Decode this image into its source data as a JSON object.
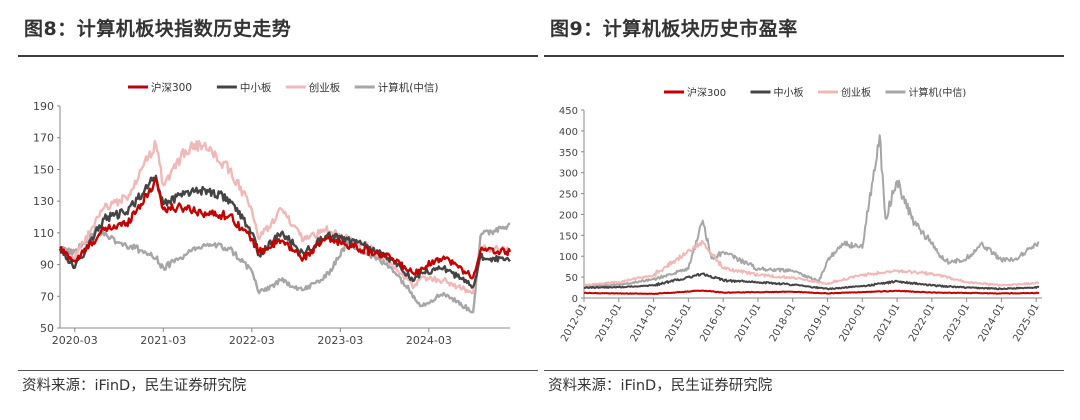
{
  "panels": [
    {
      "title": "图8：计算机板块指数历史走势",
      "source": "资料来源：iFinD，民生证券研究院"
    },
    {
      "title": "图9：计算机板块历史市盈率",
      "source": "资料来源：iFinD，民生证券研究院"
    }
  ],
  "chart_data": [
    {
      "type": "line",
      "title": "",
      "xlabel": "",
      "ylabel": "",
      "ylim": [
        50,
        190
      ],
      "yticks": [
        50,
        70,
        90,
        110,
        130,
        150,
        170,
        190
      ],
      "xlim": [
        "2020-01",
        "2025-02"
      ],
      "xticks": [
        "2020-03",
        "2021-03",
        "2022-03",
        "2023-03",
        "2024-03"
      ],
      "grid": false,
      "legend": "top",
      "series": [
        {
          "name": "沪深300",
          "color": "#c00000",
          "points": [
            [
              "2020-01",
              100
            ],
            [
              "2020-03",
              92
            ],
            [
              "2020-07",
              112
            ],
            [
              "2020-10",
              116
            ],
            [
              "2021-01",
              135
            ],
            [
              "2021-02",
              144
            ],
            [
              "2021-03",
              125
            ],
            [
              "2021-06",
              126
            ],
            [
              "2021-09",
              122
            ],
            [
              "2021-12",
              121
            ],
            [
              "2022-03",
              106
            ],
            [
              "2022-04",
              98
            ],
            [
              "2022-07",
              105
            ],
            [
              "2022-10",
              94
            ],
            [
              "2023-01",
              106
            ],
            [
              "2023-03",
              104
            ],
            [
              "2023-07",
              98
            ],
            [
              "2023-10",
              94
            ],
            [
              "2024-01",
              84
            ],
            [
              "2024-02",
              88
            ],
            [
              "2024-05",
              95
            ],
            [
              "2024-09",
              82
            ],
            [
              "2024-10",
              99
            ],
            [
              "2025-02",
              98
            ]
          ]
        },
        {
          "name": "中小板",
          "color": "#444444",
          "points": [
            [
              "2020-01",
              100
            ],
            [
              "2020-03",
              88
            ],
            [
              "2020-07",
              119
            ],
            [
              "2020-10",
              123
            ],
            [
              "2021-01",
              140
            ],
            [
              "2021-02",
              146
            ],
            [
              "2021-03",
              128
            ],
            [
              "2021-06",
              136
            ],
            [
              "2021-09",
              137
            ],
            [
              "2021-12",
              131
            ],
            [
              "2022-03",
              110
            ],
            [
              "2022-04",
              96
            ],
            [
              "2022-07",
              110
            ],
            [
              "2022-10",
              97
            ],
            [
              "2023-01",
              108
            ],
            [
              "2023-03",
              107
            ],
            [
              "2023-07",
              101
            ],
            [
              "2023-10",
              93
            ],
            [
              "2024-01",
              80
            ],
            [
              "2024-02",
              85
            ],
            [
              "2024-05",
              88
            ],
            [
              "2024-09",
              76
            ],
            [
              "2024-10",
              95
            ],
            [
              "2025-02",
              92
            ]
          ]
        },
        {
          "name": "创业板",
          "color": "#f0b8b8",
          "points": [
            [
              "2020-01",
              100
            ],
            [
              "2020-03",
              94
            ],
            [
              "2020-07",
              126
            ],
            [
              "2020-10",
              132
            ],
            [
              "2021-01",
              158
            ],
            [
              "2021-02",
              166
            ],
            [
              "2021-03",
              140
            ],
            [
              "2021-06",
              162
            ],
            [
              "2021-08",
              166
            ],
            [
              "2021-12",
              150
            ],
            [
              "2022-03",
              125
            ],
            [
              "2022-04",
              106
            ],
            [
              "2022-07",
              125
            ],
            [
              "2022-10",
              105
            ],
            [
              "2023-01",
              112
            ],
            [
              "2023-03",
              108
            ],
            [
              "2023-07",
              101
            ],
            [
              "2023-10",
              90
            ],
            [
              "2024-01",
              76
            ],
            [
              "2024-02",
              82
            ],
            [
              "2024-05",
              80
            ],
            [
              "2024-09",
              72
            ],
            [
              "2024-10",
              100
            ],
            [
              "2025-02",
              100
            ]
          ]
        },
        {
          "name": "计算机(中信)",
          "color": "#a6a6a6",
          "points": [
            [
              "2020-01",
              100
            ],
            [
              "2020-03",
              98
            ],
            [
              "2020-06",
              112
            ],
            [
              "2020-09",
              104
            ],
            [
              "2020-12",
              99
            ],
            [
              "2021-02",
              94
            ],
            [
              "2021-03",
              88
            ],
            [
              "2021-06",
              96
            ],
            [
              "2021-09",
              103
            ],
            [
              "2021-12",
              100
            ],
            [
              "2022-03",
              86
            ],
            [
              "2022-04",
              72
            ],
            [
              "2022-07",
              80
            ],
            [
              "2022-10",
              74
            ],
            [
              "2023-01",
              82
            ],
            [
              "2023-04",
              104
            ],
            [
              "2023-07",
              96
            ],
            [
              "2023-10",
              88
            ],
            [
              "2024-01",
              70
            ],
            [
              "2024-02",
              64
            ],
            [
              "2024-05",
              72
            ],
            [
              "2024-09",
              60
            ],
            [
              "2024-10",
              108
            ],
            [
              "2025-02",
              116
            ]
          ]
        }
      ]
    },
    {
      "type": "line",
      "title": "",
      "xlabel": "",
      "ylabel": "",
      "ylim": [
        0,
        450
      ],
      "yticks": [
        0,
        50,
        100,
        150,
        200,
        250,
        300,
        350,
        400,
        450
      ],
      "xlim": [
        "2012-01",
        "2025-03"
      ],
      "xticks": [
        "2012-01",
        "2013-01",
        "2014-01",
        "2015-01",
        "2016-01",
        "2017-01",
        "2018-01",
        "2019-01",
        "2020-01",
        "2021-01",
        "2022-01",
        "2023-01",
        "2024-01",
        "2025-01"
      ],
      "grid": false,
      "legend": "top",
      "series": [
        {
          "name": "沪深300",
          "color": "#c00000",
          "points": [
            [
              "2012-01",
              12
            ],
            [
              "2014-01",
              10
            ],
            [
              "2015-06",
              18
            ],
            [
              "2016-01",
              13
            ],
            [
              "2018-01",
              15
            ],
            [
              "2019-01",
              11
            ],
            [
              "2021-01",
              17
            ],
            [
              "2022-01",
              13
            ],
            [
              "2023-01",
              12
            ],
            [
              "2024-01",
              11
            ],
            [
              "2025-02",
              12
            ]
          ]
        },
        {
          "name": "中小板",
          "color": "#444444",
          "points": [
            [
              "2012-01",
              25
            ],
            [
              "2013-01",
              26
            ],
            [
              "2014-01",
              30
            ],
            [
              "2015-06",
              58
            ],
            [
              "2016-01",
              42
            ],
            [
              "2017-01",
              38
            ],
            [
              "2018-01",
              32
            ],
            [
              "2019-01",
              22
            ],
            [
              "2020-01",
              28
            ],
            [
              "2021-01",
              40
            ],
            [
              "2022-01",
              30
            ],
            [
              "2023-01",
              25
            ],
            [
              "2024-01",
              22
            ],
            [
              "2025-02",
              26
            ]
          ]
        },
        {
          "name": "创业板",
          "color": "#f0b8b8",
          "points": [
            [
              "2012-01",
              30
            ],
            [
              "2013-01",
              38
            ],
            [
              "2014-01",
              55
            ],
            [
              "2015-06",
              135
            ],
            [
              "2016-01",
              72
            ],
            [
              "2017-01",
              55
            ],
            [
              "2018-01",
              48
            ],
            [
              "2019-01",
              35
            ],
            [
              "2020-01",
              55
            ],
            [
              "2021-01",
              65
            ],
            [
              "2022-01",
              58
            ],
            [
              "2023-01",
              38
            ],
            [
              "2024-01",
              30
            ],
            [
              "2025-02",
              36
            ]
          ]
        },
        {
          "name": "计算机(中信)",
          "color": "#a6a6a6",
          "points": [
            [
              "2012-01",
              28
            ],
            [
              "2013-01",
              32
            ],
            [
              "2014-01",
              45
            ],
            [
              "2015-01",
              70
            ],
            [
              "2015-06",
              185
            ],
            [
              "2015-09",
              95
            ],
            [
              "2016-01",
              110
            ],
            [
              "2017-01",
              70
            ],
            [
              "2018-01",
              65
            ],
            [
              "2018-10",
              40
            ],
            [
              "2019-01",
              90
            ],
            [
              "2019-06",
              130
            ],
            [
              "2020-01",
              120
            ],
            [
              "2020-07",
              390
            ],
            [
              "2020-09",
              190
            ],
            [
              "2021-01",
              280
            ],
            [
              "2021-06",
              190
            ],
            [
              "2022-01",
              130
            ],
            [
              "2022-04",
              100
            ],
            [
              "2022-07",
              85
            ],
            [
              "2023-01",
              95
            ],
            [
              "2023-06",
              130
            ],
            [
              "2024-01",
              90
            ],
            [
              "2024-06",
              95
            ],
            [
              "2025-02",
              132
            ]
          ]
        }
      ]
    }
  ]
}
